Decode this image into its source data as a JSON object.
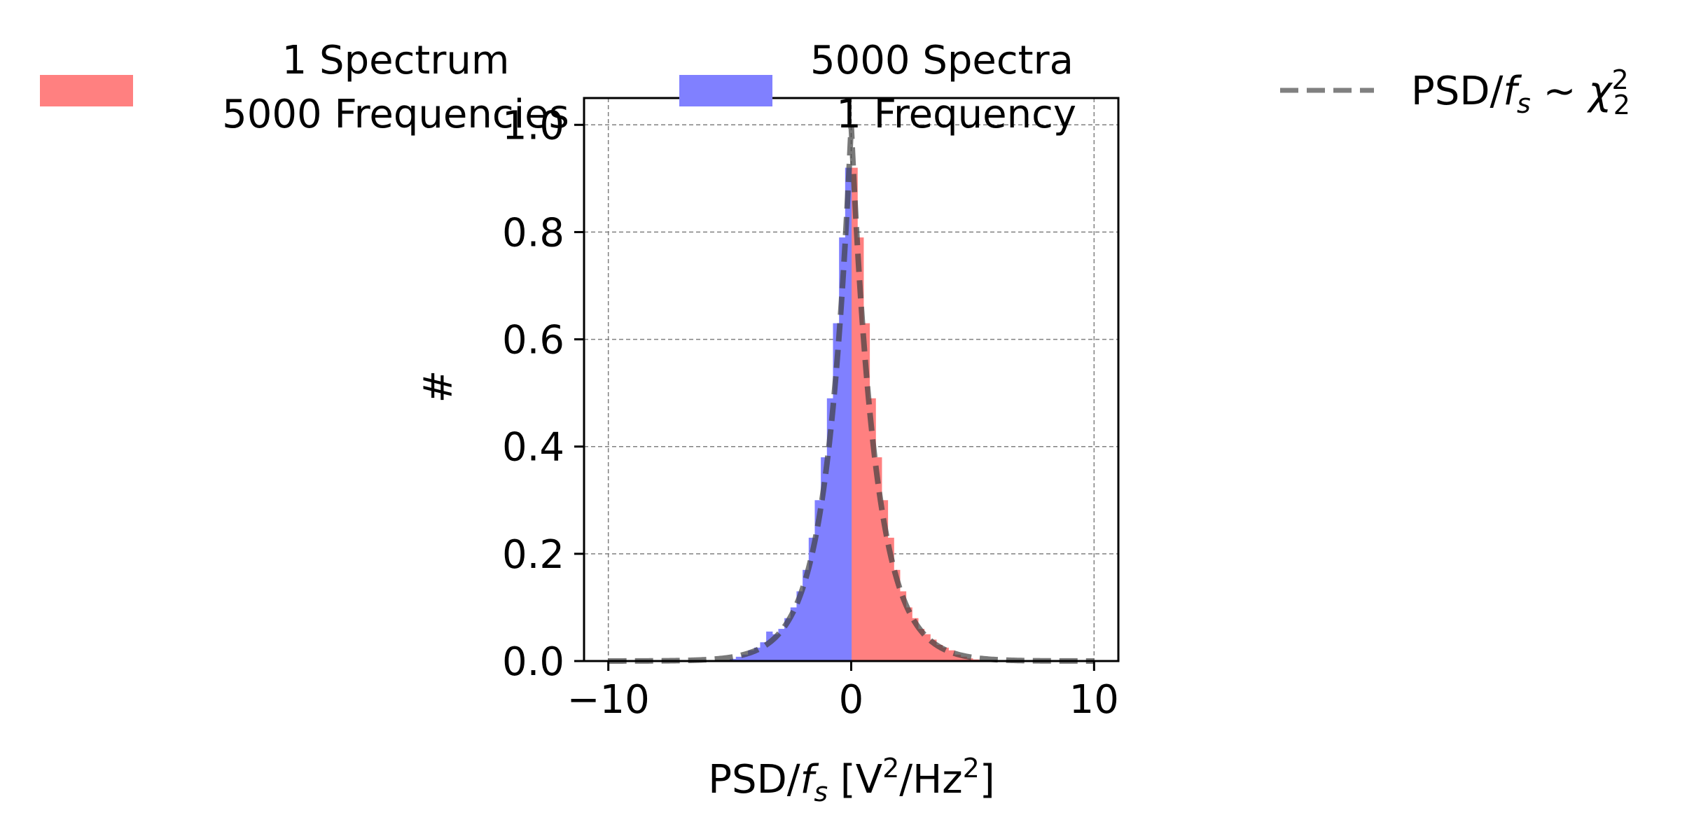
{
  "chart_data": {
    "type": "bar",
    "xlabel": "PSD/f_s [V²/Hz²]",
    "ylabel": "#",
    "xlim": [
      -11,
      11
    ],
    "ylim": [
      0,
      1.05
    ],
    "xticks": [
      -10,
      0,
      10
    ],
    "xtick_labels": [
      "−10",
      "0",
      "10"
    ],
    "yticks": [
      0.0,
      0.2,
      0.4,
      0.6,
      0.8,
      1.0
    ],
    "ytick_labels": [
      "0.0",
      "0.2",
      "0.4",
      "0.6",
      "0.8",
      "1.0"
    ],
    "grid": true,
    "legend": {
      "placement": "top, outside",
      "entries": [
        {
          "lines": [
            "1 Spectrum",
            "5000 Frequencies"
          ],
          "color": "#ff8080",
          "kind": "patch"
        },
        {
          "lines": [
            "5000 Spectra",
            "1 Frequency"
          ],
          "color": "#8080ff",
          "kind": "patch"
        },
        {
          "label": "PSD/f_s ~ χ²₂",
          "color": "#808080",
          "kind": "dashed-line"
        }
      ]
    },
    "series": [
      {
        "name": "1 Spectrum / 5000 Frequencies",
        "color": "#ff8080",
        "bin_width": 0.25,
        "bin_starts": [
          0.0,
          0.25,
          0.5,
          0.75,
          1.0,
          1.25,
          1.5,
          1.75,
          2.0,
          2.25,
          2.5,
          2.75,
          3.0,
          3.25,
          3.5,
          3.75,
          4.0,
          4.25,
          4.5,
          4.75,
          5.0
        ],
        "values": [
          0.92,
          0.79,
          0.63,
          0.49,
          0.38,
          0.3,
          0.23,
          0.17,
          0.13,
          0.1,
          0.08,
          0.06,
          0.05,
          0.04,
          0.03,
          0.025,
          0.02,
          0.012,
          0.008,
          0.005,
          0.003
        ]
      },
      {
        "name": "5000 Spectra / 1 Frequency",
        "color": "#8080ff",
        "bin_width": 0.25,
        "bin_starts": [
          -5.0,
          -4.75,
          -4.5,
          -4.25,
          -4.0,
          -3.75,
          -3.5,
          -3.25,
          -3.0,
          -2.75,
          -2.5,
          -2.25,
          -2.0,
          -1.75,
          -1.5,
          -1.25,
          -1.0,
          -0.75,
          -0.5,
          -0.25
        ],
        "values": [
          0.004,
          0.008,
          0.012,
          0.02,
          0.025,
          0.035,
          0.055,
          0.05,
          0.06,
          0.08,
          0.1,
          0.13,
          0.17,
          0.23,
          0.3,
          0.38,
          0.49,
          0.63,
          0.79,
          0.92
        ]
      }
    ],
    "reference_curve": {
      "label": "PSD/f_s ~ χ²₂",
      "style": "dashed",
      "color": "#808080",
      "formula": "exp(-|x|)",
      "x_range": [
        -10,
        10
      ]
    }
  }
}
